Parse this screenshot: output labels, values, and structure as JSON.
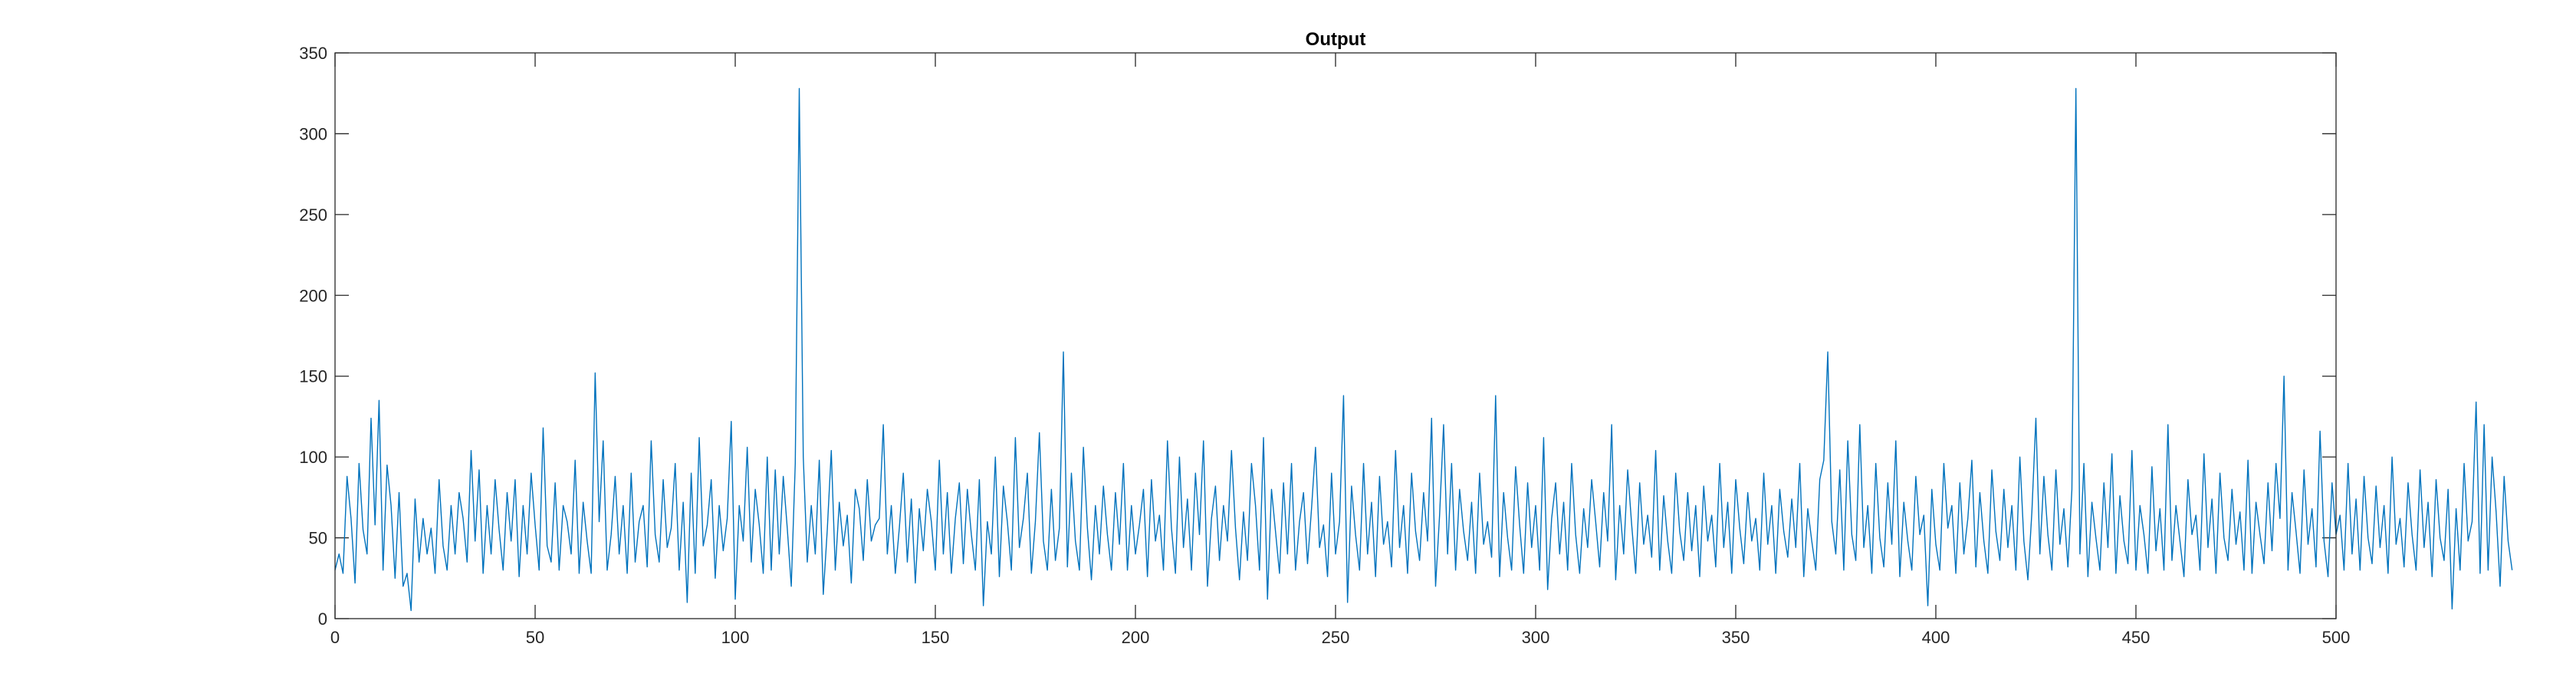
{
  "chart_data": {
    "type": "line",
    "title": "Output",
    "xlabel": "",
    "ylabel": "",
    "xlim": [
      0,
      500
    ],
    "ylim": [
      0,
      350
    ],
    "x_ticks": [
      0,
      50,
      100,
      150,
      200,
      250,
      300,
      350,
      400,
      450,
      500
    ],
    "y_ticks": [
      0,
      50,
      100,
      150,
      200,
      250,
      300,
      350
    ],
    "grid": false,
    "box": true,
    "line_color": "#0072BD",
    "axis_color": "#262626",
    "series": [
      {
        "name": "Output",
        "x_start": 0,
        "x_step": 1,
        "values": [
          30,
          40,
          28,
          88,
          62,
          22,
          96,
          55,
          40,
          124,
          58,
          135,
          30,
          95,
          70,
          25,
          78,
          20,
          28,
          5,
          74,
          35,
          62,
          40,
          56,
          28,
          86,
          45,
          30,
          70,
          40,
          78,
          62,
          35,
          104,
          48,
          92,
          28,
          70,
          40,
          86,
          55,
          30,
          78,
          48,
          86,
          26,
          70,
          40,
          90,
          58,
          30,
          118,
          45,
          35,
          84,
          30,
          70,
          60,
          40,
          98,
          28,
          72,
          48,
          28,
          152,
          60,
          110,
          30,
          52,
          88,
          40,
          70,
          28,
          90,
          35,
          60,
          70,
          32,
          110,
          52,
          35,
          86,
          44,
          56,
          96,
          30,
          72,
          10,
          90,
          28,
          112,
          45,
          58,
          86,
          25,
          70,
          42,
          62,
          122,
          12,
          70,
          48,
          106,
          35,
          80,
          58,
          28,
          100,
          30,
          92,
          40,
          88,
          56,
          20,
          96,
          328,
          100,
          35,
          70,
          40,
          98,
          15,
          55,
          104,
          30,
          72,
          45,
          64,
          22,
          80,
          68,
          36,
          86,
          48,
          58,
          62,
          120,
          40,
          70,
          28,
          56,
          90,
          35,
          74,
          22,
          68,
          42,
          80,
          60,
          30,
          98,
          40,
          78,
          28,
          62,
          84,
          34,
          80,
          52,
          30,
          86,
          8,
          60,
          40,
          100,
          26,
          82,
          60,
          30,
          112,
          44,
          62,
          90,
          28,
          60,
          115,
          48,
          30,
          80,
          36,
          56,
          165,
          32,
          90,
          48,
          30,
          106,
          56,
          24,
          70,
          40,
          82,
          52,
          30,
          78,
          46,
          96,
          30,
          70,
          40,
          58,
          80,
          26,
          86,
          48,
          64,
          30,
          110,
          56,
          28,
          100,
          44,
          74,
          30,
          90,
          52,
          110,
          20,
          62,
          82,
          36,
          70,
          48,
          104,
          56,
          24,
          66,
          36,
          96,
          70,
          30,
          112,
          12,
          80,
          54,
          28,
          84,
          40,
          96,
          30,
          60,
          78,
          34,
          68,
          106,
          44,
          58,
          26,
          90,
          40,
          60,
          138,
          10,
          82,
          52,
          30,
          96,
          40,
          72,
          26,
          88,
          46,
          60,
          32,
          104,
          44,
          70,
          28,
          90,
          54,
          36,
          78,
          48,
          124,
          20,
          64,
          120,
          40,
          96,
          30,
          80,
          54,
          36,
          72,
          28,
          90,
          46,
          60,
          38,
          138,
          26,
          78,
          50,
          30,
          94,
          58,
          28,
          84,
          44,
          70,
          30,
          112,
          18,
          62,
          84,
          40,
          72,
          30,
          96,
          52,
          28,
          68,
          44,
          86,
          60,
          32,
          78,
          48,
          120,
          24,
          70,
          40,
          92,
          58,
          28,
          84,
          46,
          64,
          38,
          104,
          30,
          76,
          48,
          28,
          90,
          54,
          36,
          78,
          42,
          70,
          26,
          82,
          48,
          64,
          32,
          96,
          44,
          72,
          28,
          86,
          56,
          34,
          78,
          48,
          62,
          30,
          90,
          46,
          70,
          28,
          80,
          54,
          38,
          74,
          44,
          96,
          26,
          68,
          48,
          30,
          86,
          98,
          165,
          60,
          40,
          92,
          30,
          110,
          52,
          36,
          120,
          44,
          70,
          28,
          96,
          50,
          32,
          84,
          46,
          110,
          26,
          72,
          48,
          30,
          88,
          52,
          64,
          8,
          80,
          46,
          30,
          96,
          56,
          70,
          28,
          84,
          40,
          62,
          98,
          32,
          78,
          48,
          28,
          92,
          54,
          36,
          80,
          44,
          70,
          30,
          100,
          48,
          24,
          66,
          124,
          40,
          88,
          52,
          30,
          92,
          46,
          68,
          32,
          80,
          328,
          40,
          96,
          26,
          72,
          50,
          30,
          84,
          44,
          102,
          28,
          76,
          48,
          34,
          104,
          30,
          70,
          52,
          28,
          94,
          42,
          68,
          30,
          120,
          36,
          70,
          48,
          26,
          86,
          52,
          64,
          30,
          102,
          44,
          74,
          28,
          90,
          50,
          36,
          80,
          46,
          66,
          30,
          98,
          28,
          72,
          52,
          34,
          84,
          42,
          96,
          62,
          150,
          30,
          78,
          54,
          28,
          92,
          46,
          68,
          32,
          116,
          48,
          26,
          84,
          52,
          64,
          30,
          96,
          40,
          74,
          30,
          88,
          50,
          34,
          82,
          44,
          70,
          28,
          100,
          46,
          62,
          32,
          84,
          52,
          30,
          92,
          44,
          72,
          26,
          86,
          50,
          36,
          80,
          6,
          68,
          30,
          96,
          48,
          60,
          134,
          28,
          120,
          30,
          100,
          66,
          20,
          88,
          48,
          30
        ]
      }
    ]
  }
}
